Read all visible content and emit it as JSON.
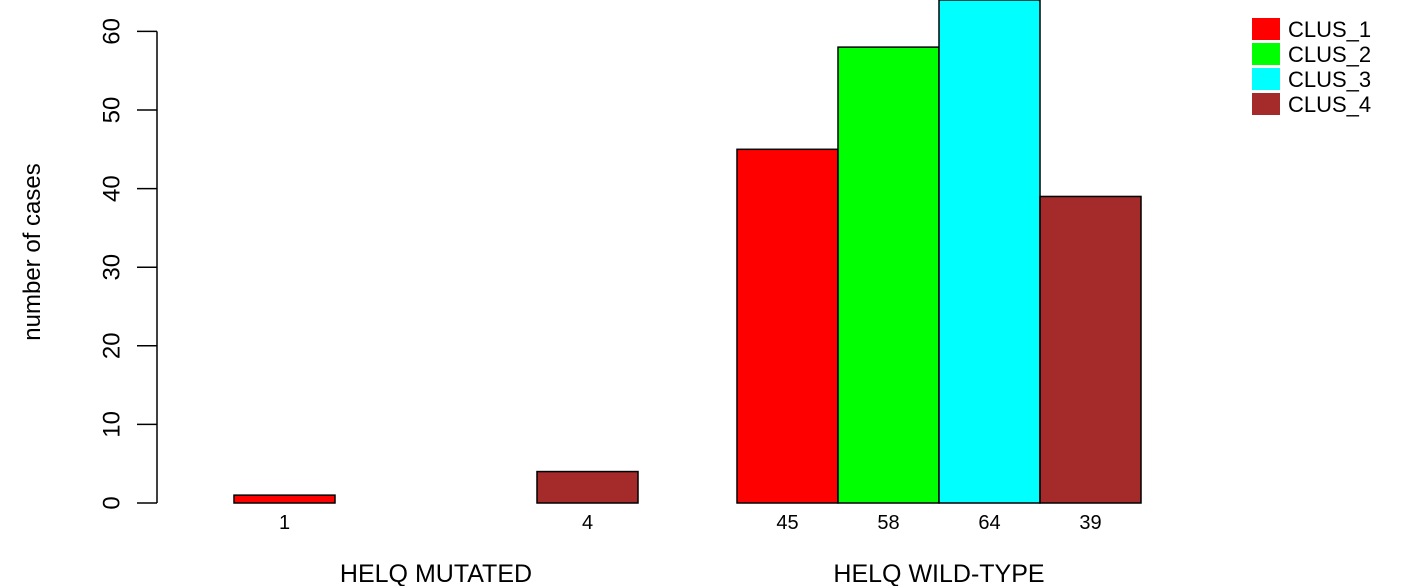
{
  "chart_data": {
    "type": "bar",
    "title": "",
    "xlabel": "",
    "ylabel": "number of cases",
    "ylim": [
      0,
      65
    ],
    "yticks": [
      0,
      10,
      20,
      30,
      40,
      50,
      60
    ],
    "groups": [
      {
        "label": "HELQ MUTATED",
        "values": [
          1,
          0,
          0,
          4
        ],
        "value_labels": [
          "1",
          "",
          "",
          "4"
        ]
      },
      {
        "label": "HELQ WILD-TYPE",
        "values": [
          45,
          58,
          64,
          39
        ],
        "value_labels": [
          "45",
          "58",
          "64",
          "39"
        ]
      }
    ],
    "series": [
      {
        "name": "CLUS_1",
        "color": "#ff0000"
      },
      {
        "name": "CLUS_2",
        "color": "#00ff00"
      },
      {
        "name": "CLUS_3",
        "color": "#00ffff"
      },
      {
        "name": "CLUS_4",
        "color": "#a52a2a"
      }
    ],
    "grid": false,
    "legend": "top-right"
  }
}
